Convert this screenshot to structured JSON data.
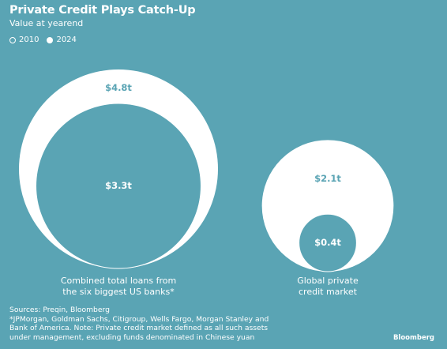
{
  "title": "Private Credit Plays Catch-Up",
  "subtitle": "Value at yearend",
  "colors": {
    "background": "#5aa4b4",
    "circle_2024": "#ffffff",
    "circle_2010": "#5aa4b4",
    "label": "#5aa4b4",
    "label_on_2010": "#ffffff"
  },
  "legend": [
    {
      "name": "2010",
      "style": "outline"
    },
    {
      "name": "2024",
      "style": "filled"
    }
  ],
  "chart_data": {
    "type": "bubble",
    "series": [
      {
        "name": "2010",
        "values": [
          3.3,
          0.4
        ],
        "labels": [
          "$3.3t",
          "$0.4t"
        ]
      },
      {
        "name": "2024",
        "values": [
          4.8,
          2.1
        ],
        "labels": [
          "$4.8t",
          "$2.1t"
        ]
      }
    ],
    "categories": [
      [
        "Combined total loans from",
        "the six biggest US banks*"
      ],
      [
        "Global private",
        "credit market"
      ]
    ]
  },
  "footer": {
    "sources": "Sources: Preqin, Bloomberg",
    "note_line1": "*JPMorgan, Goldman Sachs, Citigroup, Wells Fargo, Morgan Stanley and",
    "note_line2": "Bank of America. Note: Private credit market defined as all such assets",
    "note_line3": "under management, excluding funds denominated in Chinese yuan"
  },
  "brand": "Bloomberg"
}
